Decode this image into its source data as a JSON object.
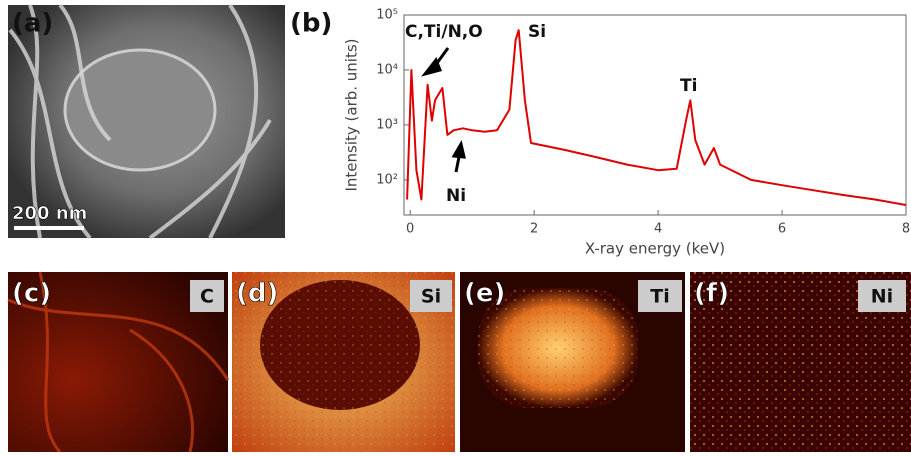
{
  "panels": {
    "a": {
      "label": "(a)",
      "scale_bar": "200 nm"
    },
    "c": {
      "label": "(c)",
      "element": "C"
    },
    "d": {
      "label": "(d)",
      "element": "Si"
    },
    "e": {
      "label": "(e)",
      "element": "Ti"
    },
    "f": {
      "label": "(f)",
      "element": "Ni"
    },
    "b": {
      "label": "(b)"
    }
  },
  "chart_data": {
    "type": "line",
    "x_label": "X-ray energy (keV)",
    "y_label": "Intensity (arb. units)",
    "annotations": [
      "C,Ti/N,O",
      "Si",
      "Ti",
      "Ni"
    ],
    "log_y": true,
    "color": "#e00000",
    "xlim": [
      -0.1,
      8
    ],
    "xticks": [
      0,
      2,
      4,
      6,
      8
    ],
    "ylim": [
      23,
      100000
    ],
    "yticks": [
      {
        "value": 100,
        "label": "10²"
      },
      {
        "value": 1000,
        "label": "10³"
      },
      {
        "value": 10000,
        "label": "10⁴"
      },
      {
        "value": 100000,
        "label": "10⁵"
      }
    ],
    "x": [
      -0.05,
      0.02,
      0.1,
      0.18,
      0.28,
      0.35,
      0.4,
      0.45,
      0.52,
      0.6,
      0.7,
      0.85,
      1.0,
      1.2,
      1.4,
      1.6,
      1.7,
      1.75,
      1.85,
      1.95,
      2.5,
      3.0,
      3.5,
      4.0,
      4.3,
      4.45,
      4.52,
      4.6,
      4.75,
      4.9,
      5.0,
      5.5,
      6.0,
      6.5,
      7.0,
      7.5,
      8.0
    ],
    "values": [
      44,
      10000,
      150,
      44,
      5400,
      1200,
      2800,
      3500,
      4700,
      660,
      800,
      870,
      800,
      750,
      800,
      1900,
      35000,
      53000,
      2800,
      470,
      350,
      260,
      190,
      150,
      160,
      1200,
      2800,
      530,
      190,
      380,
      190,
      100,
      80,
      65,
      53,
      44,
      35
    ]
  }
}
